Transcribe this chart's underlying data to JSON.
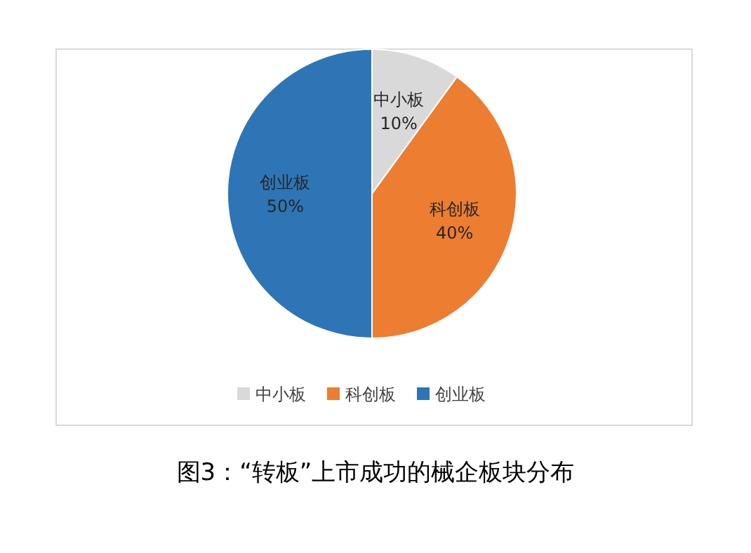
{
  "chart_data": {
    "type": "pie",
    "title": "图3：“转板”上市成功的械企板块分布",
    "categories": [
      "中小板",
      "科创板",
      "创业板"
    ],
    "values": [
      10,
      40,
      50
    ],
    "colors": [
      "#d9d9d9",
      "#ed7d31",
      "#2e75b6"
    ],
    "value_labels": [
      "10%",
      "40%",
      "50%"
    ],
    "legend": "bottom"
  }
}
